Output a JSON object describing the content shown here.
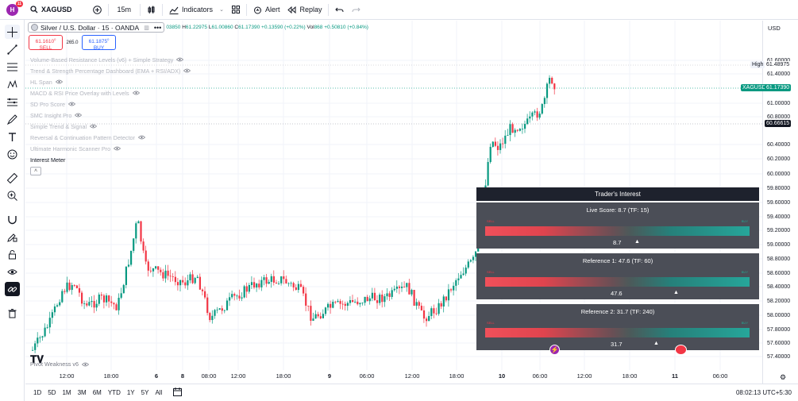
{
  "topbar": {
    "avatar_letter": "H",
    "avatar_badge": "11",
    "symbol": "XAGUSD",
    "interval": "15m",
    "indicators_label": "Indicators",
    "alert_label": "Alert",
    "replay_label": "Replay"
  },
  "legend": {
    "title": "Silver / U.S. Dollar · 15 · OANDA",
    "open_partial": "03850",
    "h_label": "H",
    "high": "61.22975",
    "l_label": "L",
    "low": "61.00860",
    "c_label": "C",
    "close": "61.17390",
    "change": "+0.13590 (+0.22%)",
    "vol_label": "Vol",
    "vol": "868",
    "vol_change": "+0.50810 (+0.84%)",
    "sell_price": "61.1610",
    "sell_sup": "0",
    "sell_label": "SELL",
    "spread": "265.0",
    "buy_price": "61.1875",
    "buy_sup": "0",
    "buy_label": "BUY"
  },
  "indicators": [
    "Volume-Based Resistance Levels (v6) + Simple Strategy",
    "Trend & Strength Percentage Dashboard (EMA + RSI/ADX)",
    "HL Span",
    "MACD & RSI Price Overlay with Levels",
    "SD Pro Score",
    "SMC Insight Pro",
    "Simple Trend & Signal",
    "Reversal & Continuation Pattern Detector",
    "Ultimate Harmonic Scanner Pro",
    "Interest Meter"
  ],
  "bottom_indicator": "Pivot Weakness v6",
  "price_scale": {
    "currency": "USD",
    "ticks": [
      "61.60000",
      "61.40000",
      "61.00000",
      "60.80000",
      "60.40000",
      "60.20000",
      "60.00000",
      "59.80000",
      "59.60000",
      "59.40000",
      "59.20000",
      "59.00000",
      "58.80000",
      "58.60000",
      "58.40000",
      "58.20000",
      "58.00000",
      "57.80000",
      "57.60000",
      "57.40000"
    ],
    "high_label": "High",
    "high_value": "61.48975",
    "symbol_label": "XAGUSD",
    "current_value": "61.17390",
    "line_value": "60.66615"
  },
  "time_scale": [
    "12:00",
    "18:00",
    "6",
    "8",
    "08:00",
    "12:00",
    "18:00",
    "9",
    "06:00",
    "12:00",
    "18:00",
    "10",
    "06:00",
    "12:00",
    "18:00",
    "11",
    "06:00"
  ],
  "interest_meter": {
    "header": "Trader's Interest",
    "sell": "SELL",
    "buy": "BUY",
    "blocks": [
      {
        "title": "Live Score: 8.7 (TF: 15)",
        "value": "8.7",
        "level": 0.087
      },
      {
        "title": "Reference 1: 47.6 (TF: 60)",
        "value": "47.6",
        "level": 0.476
      },
      {
        "title": "Reference 2: 31.7 (TF: 240)",
        "value": "31.7",
        "level": 0.317
      }
    ]
  },
  "bottombar": {
    "ranges": [
      "1D",
      "5D",
      "1M",
      "3M",
      "6M",
      "YTD",
      "1Y",
      "5Y",
      "All"
    ],
    "clock": "08:02:13 UTC+5:30"
  },
  "colors": {
    "up": "#089981",
    "down": "#f23645",
    "accent": "#2962ff",
    "panel_dark": "#1e222d",
    "panel_grey": "#4b4e57"
  }
}
